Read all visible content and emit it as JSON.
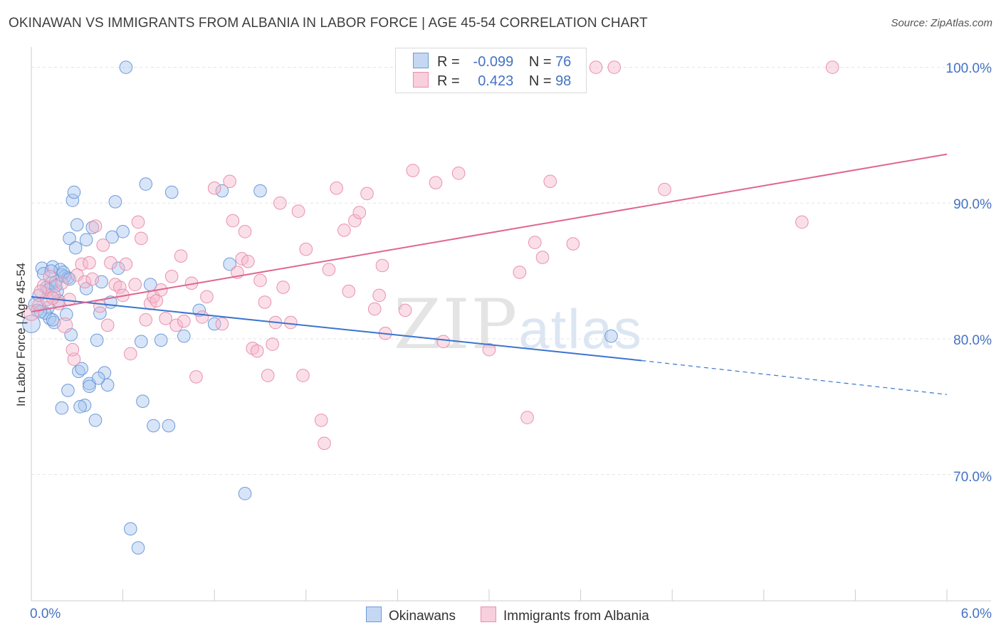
{
  "title": "OKINAWAN VS IMMIGRANTS FROM ALBANIA IN LABOR FORCE | AGE 45-54 CORRELATION CHART",
  "source": "Source: ZipAtlas.com",
  "watermark": {
    "zip": "ZIP",
    "atlas": "atlas"
  },
  "legend": {
    "r_label": "R =",
    "n_label": "N =",
    "rows": [
      {
        "r": "-0.099",
        "n": "76"
      },
      {
        "r": "0.423",
        "n": "98"
      }
    ]
  },
  "colors": {
    "blue_fill": "#a9c6ef",
    "blue_stroke": "#6d9ad8",
    "blue_line": "#3a74cf",
    "pink_fill": "#f6b8cb",
    "pink_stroke": "#e891ad",
    "pink_line": "#e0668f",
    "tick_color": "#4472c4",
    "grid": "#e3e3e3"
  },
  "chart_data": {
    "type": "scatter",
    "title": "OKINAWAN VS IMMIGRANTS FROM ALBANIA IN LABOR FORCE | AGE 45-54 CORRELATION CHART",
    "xlabel": "",
    "ylabel": "In Labor Force | Age 45-54",
    "xlim": [
      0,
      6
    ],
    "ylim": [
      60.7,
      101.5
    ],
    "x_tick_labels": [
      "0.0%",
      "6.0%"
    ],
    "y_ticks": [
      70,
      80,
      90,
      100
    ],
    "y_tick_labels": [
      "70.0%",
      "80.0%",
      "90.0%",
      "100.0%"
    ],
    "grid": true,
    "legend_position": "bottom",
    "series": [
      {
        "name": "Okinawans",
        "r": -0.099,
        "n": 76,
        "trend": {
          "x0": 0,
          "y0": 83.1,
          "x1": 4.0,
          "y1": 78.4,
          "dash_to_x": 6.0,
          "dash_to_y": 75.9
        },
        "points": [
          [
            0.0,
            81.1,
            14
          ],
          [
            0.03,
            82.5,
            12
          ],
          [
            0.05,
            83.2,
            10
          ],
          [
            0.07,
            85.2,
            10
          ],
          [
            0.08,
            84.8,
            10
          ],
          [
            0.1,
            83.8,
            10
          ],
          [
            0.11,
            82.3,
            10
          ],
          [
            0.12,
            81.5,
            10
          ],
          [
            0.13,
            84.1,
            10
          ],
          [
            0.14,
            85.3,
            10
          ],
          [
            0.15,
            81.2,
            10
          ],
          [
            0.16,
            84.2,
            10
          ],
          [
            0.17,
            83.5,
            10
          ],
          [
            0.18,
            82.8,
            10
          ],
          [
            0.19,
            85.1,
            10
          ],
          [
            0.2,
            84.7,
            10
          ],
          [
            0.22,
            84.6,
            10
          ],
          [
            0.23,
            81.8,
            10
          ],
          [
            0.24,
            84.5,
            10
          ],
          [
            0.25,
            87.4,
            10
          ],
          [
            0.26,
            80.3,
            10
          ],
          [
            0.27,
            90.2,
            10
          ],
          [
            0.28,
            90.8,
            10
          ],
          [
            0.29,
            86.7,
            10
          ],
          [
            0.3,
            88.4,
            10
          ],
          [
            0.31,
            77.6,
            10
          ],
          [
            0.33,
            77.8,
            10
          ],
          [
            0.35,
            75.1,
            10
          ],
          [
            0.36,
            87.3,
            10
          ],
          [
            0.38,
            76.7,
            10
          ],
          [
            0.4,
            88.2,
            10
          ],
          [
            0.42,
            74.0,
            10
          ],
          [
            0.43,
            79.9,
            10
          ],
          [
            0.45,
            81.9,
            10
          ],
          [
            0.46,
            84.2,
            10
          ],
          [
            0.48,
            77.5,
            10
          ],
          [
            0.5,
            76.6,
            10
          ],
          [
            0.52,
            82.7,
            10
          ],
          [
            0.53,
            87.5,
            10
          ],
          [
            0.55,
            90.1,
            10
          ],
          [
            0.57,
            85.2,
            10
          ],
          [
            0.6,
            87.9,
            10
          ],
          [
            0.62,
            100.0,
            10
          ],
          [
            0.65,
            66.0,
            10
          ],
          [
            0.7,
            64.6,
            10
          ],
          [
            0.72,
            79.8,
            10
          ],
          [
            0.73,
            75.4,
            10
          ],
          [
            0.75,
            91.4,
            10
          ],
          [
            0.78,
            84.0,
            10
          ],
          [
            0.8,
            73.6,
            10
          ],
          [
            0.85,
            79.9,
            10
          ],
          [
            0.9,
            73.6,
            10
          ],
          [
            0.92,
            90.8,
            10
          ],
          [
            1.0,
            80.2,
            10
          ],
          [
            1.1,
            82.1,
            10
          ],
          [
            1.2,
            81.1,
            10
          ],
          [
            1.25,
            90.9,
            10
          ],
          [
            1.3,
            85.5,
            10
          ],
          [
            1.4,
            68.6,
            10
          ],
          [
            1.5,
            90.9,
            10
          ],
          [
            3.8,
            80.2,
            10
          ],
          [
            0.09,
            81.9,
            10
          ],
          [
            0.11,
            83.6,
            10
          ],
          [
            0.13,
            85.0,
            10
          ],
          [
            0.21,
            84.9,
            10
          ],
          [
            0.04,
            82.1,
            10
          ],
          [
            0.06,
            82.0,
            10
          ],
          [
            0.14,
            81.4,
            10
          ],
          [
            0.16,
            83.9,
            10
          ],
          [
            0.36,
            83.7,
            10
          ],
          [
            0.38,
            76.5,
            10
          ],
          [
            0.24,
            76.2,
            10
          ],
          [
            0.2,
            74.9,
            10
          ],
          [
            0.32,
            75.0,
            10
          ],
          [
            0.44,
            77.1,
            10
          ],
          [
            0.25,
            84.4,
            10
          ]
        ]
      },
      {
        "name": "Immigrants from Albania",
        "r": 0.423,
        "n": 98,
        "trend": {
          "x0": 0,
          "y0": 82.0,
          "x1": 6.0,
          "y1": 93.6
        },
        "points": [
          [
            0.0,
            81.9,
            12
          ],
          [
            0.05,
            82.5,
            10
          ],
          [
            0.08,
            83.9,
            10
          ],
          [
            0.1,
            82.9,
            10
          ],
          [
            0.12,
            84.6,
            10
          ],
          [
            0.15,
            83.2,
            10
          ],
          [
            0.18,
            82.6,
            10
          ],
          [
            0.2,
            84.1,
            10
          ],
          [
            0.22,
            81.0,
            12
          ],
          [
            0.25,
            82.9,
            10
          ],
          [
            0.28,
            78.5,
            10
          ],
          [
            0.3,
            84.7,
            10
          ],
          [
            0.33,
            85.5,
            10
          ],
          [
            0.35,
            84.2,
            10
          ],
          [
            0.38,
            85.6,
            10
          ],
          [
            0.4,
            84.4,
            10
          ],
          [
            0.42,
            88.3,
            10
          ],
          [
            0.45,
            82.4,
            10
          ],
          [
            0.47,
            86.9,
            10
          ],
          [
            0.5,
            81.0,
            10
          ],
          [
            0.52,
            85.6,
            10
          ],
          [
            0.55,
            84.0,
            10
          ],
          [
            0.58,
            83.8,
            10
          ],
          [
            0.6,
            83.2,
            10
          ],
          [
            0.62,
            85.5,
            10
          ],
          [
            0.65,
            78.9,
            10
          ],
          [
            0.68,
            84.0,
            10
          ],
          [
            0.7,
            88.6,
            10
          ],
          [
            0.72,
            87.4,
            10
          ],
          [
            0.75,
            81.4,
            10
          ],
          [
            0.78,
            82.6,
            10
          ],
          [
            0.8,
            83.1,
            10
          ],
          [
            0.82,
            82.8,
            10
          ],
          [
            0.85,
            83.6,
            10
          ],
          [
            0.88,
            81.5,
            10
          ],
          [
            0.92,
            84.6,
            10
          ],
          [
            0.95,
            81.0,
            10
          ],
          [
            0.98,
            86.1,
            10
          ],
          [
            1.0,
            81.3,
            10
          ],
          [
            1.05,
            84.1,
            10
          ],
          [
            1.08,
            77.2,
            10
          ],
          [
            1.12,
            81.6,
            10
          ],
          [
            1.15,
            83.1,
            10
          ],
          [
            1.2,
            91.1,
            10
          ],
          [
            1.25,
            81.1,
            10
          ],
          [
            1.3,
            91.6,
            10
          ],
          [
            1.32,
            88.7,
            10
          ],
          [
            1.35,
            84.9,
            10
          ],
          [
            1.38,
            85.9,
            10
          ],
          [
            1.4,
            87.9,
            10
          ],
          [
            1.42,
            85.7,
            10
          ],
          [
            1.45,
            79.3,
            10
          ],
          [
            1.48,
            79.1,
            10
          ],
          [
            1.5,
            84.3,
            10
          ],
          [
            1.53,
            82.7,
            10
          ],
          [
            1.55,
            77.3,
            10
          ],
          [
            1.58,
            79.6,
            10
          ],
          [
            1.6,
            81.2,
            10
          ],
          [
            1.63,
            90.0,
            10
          ],
          [
            1.65,
            83.8,
            10
          ],
          [
            1.7,
            81.2,
            10
          ],
          [
            1.75,
            89.4,
            10
          ],
          [
            1.78,
            77.3,
            10
          ],
          [
            1.8,
            86.6,
            10
          ],
          [
            1.9,
            74.0,
            10
          ],
          [
            1.92,
            72.3,
            10
          ],
          [
            1.95,
            85.1,
            10
          ],
          [
            2.0,
            91.1,
            10
          ],
          [
            2.05,
            88.0,
            10
          ],
          [
            2.08,
            83.5,
            10
          ],
          [
            2.12,
            88.7,
            10
          ],
          [
            2.15,
            89.3,
            10
          ],
          [
            2.2,
            90.7,
            10
          ],
          [
            2.25,
            82.2,
            10
          ],
          [
            2.28,
            83.2,
            10
          ],
          [
            2.3,
            85.4,
            10
          ],
          [
            2.32,
            80.4,
            10
          ],
          [
            2.45,
            82.1,
            10
          ],
          [
            2.5,
            92.4,
            10
          ],
          [
            2.55,
            100.0,
            10
          ],
          [
            2.65,
            91.5,
            10
          ],
          [
            2.7,
            79.8,
            10
          ],
          [
            2.8,
            92.2,
            10
          ],
          [
            3.0,
            79.2,
            10
          ],
          [
            3.2,
            84.9,
            10
          ],
          [
            3.25,
            74.2,
            10
          ],
          [
            3.3,
            87.1,
            10
          ],
          [
            3.35,
            86.0,
            10
          ],
          [
            3.4,
            91.6,
            10
          ],
          [
            3.55,
            87.0,
            10
          ],
          [
            3.7,
            100.0,
            10
          ],
          [
            3.82,
            100.0,
            10
          ],
          [
            4.15,
            91.0,
            10
          ],
          [
            5.05,
            88.6,
            10
          ],
          [
            5.25,
            100.0,
            10
          ],
          [
            0.06,
            83.5,
            10
          ],
          [
            0.14,
            83.0,
            10
          ],
          [
            0.27,
            79.2,
            10
          ]
        ]
      }
    ]
  }
}
